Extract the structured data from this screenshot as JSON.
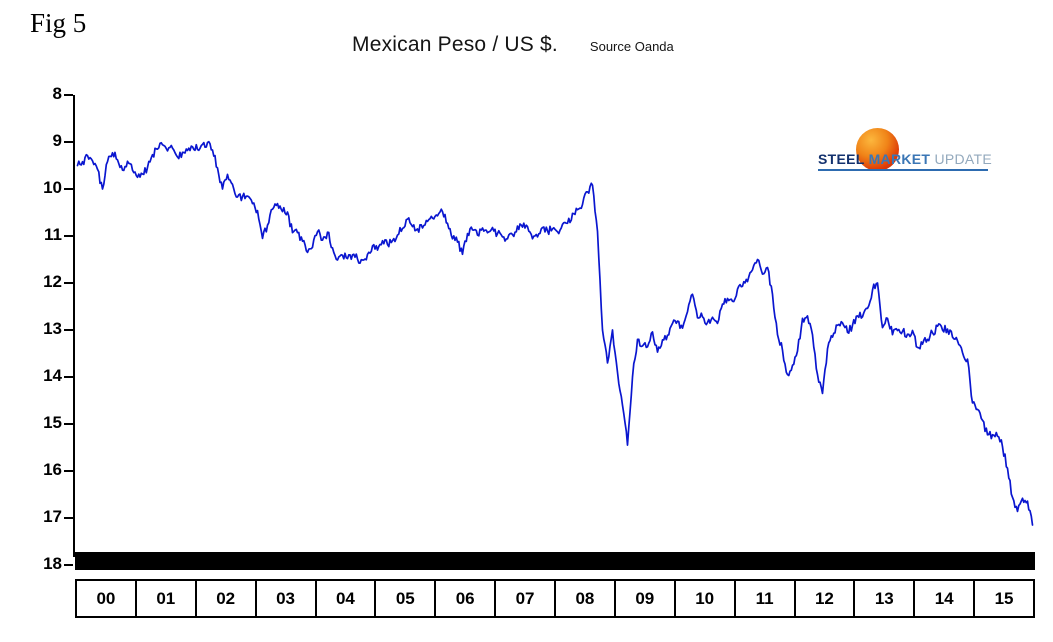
{
  "figure": {
    "label": "Fig 5",
    "title": "Mexican Peso / US $.",
    "source": "Source Oanda"
  },
  "logo": {
    "steel": "STEEL",
    "market": "MARKET",
    "update": "UPDATE",
    "accent_color": "#dd3a08",
    "blue_color": "#2d6bb0"
  },
  "chart_data": {
    "type": "line",
    "title": "Mexican Peso / US $",
    "series_name": "USD/MXN exchange rate (pesos per US dollar)",
    "source": "Oanda",
    "x_start_year": 2000,
    "points_per_year": 12,
    "x_tick_labels": [
      "00",
      "01",
      "02",
      "03",
      "04",
      "05",
      "06",
      "07",
      "08",
      "09",
      "10",
      "11",
      "12",
      "13",
      "14",
      "15"
    ],
    "y_ticks": [
      8,
      9,
      10,
      11,
      12,
      13,
      14,
      15,
      16,
      17,
      18
    ],
    "y_min": 8,
    "y_max": 18,
    "y_axis_inverted": true,
    "grid": false,
    "legend": false,
    "line_color": "#0a16cf",
    "values": [
      9.5,
      9.42,
      9.29,
      9.4,
      9.58,
      10.0,
      9.42,
      9.23,
      9.38,
      9.6,
      9.41,
      9.6,
      9.75,
      9.68,
      9.54,
      9.27,
      9.15,
      9.06,
      9.19,
      9.13,
      9.32,
      9.22,
      9.18,
      9.1,
      9.16,
      9.05,
      9.01,
      9.17,
      9.55,
      10.0,
      9.69,
      9.9,
      10.17,
      10.16,
      10.15,
      10.31,
      10.46,
      11.05,
      10.77,
      10.43,
      10.31,
      10.48,
      10.49,
      10.93,
      10.93,
      11.11,
      11.35,
      11.24,
      10.91,
      11.09,
      10.92,
      11.25,
      11.51,
      11.41,
      11.48,
      11.4,
      11.49,
      11.51,
      11.39,
      11.21,
      11.3,
      11.1,
      11.18,
      11.1,
      10.98,
      10.84,
      10.64,
      10.8,
      10.85,
      10.83,
      10.69,
      10.62,
      10.57,
      10.48,
      10.73,
      11.06,
      11.13,
      11.39,
      10.95,
      10.87,
      10.98,
      10.83,
      10.93,
      10.82,
      10.95,
      11.02,
      11.06,
      10.97,
      10.79,
      10.81,
      10.8,
      11.06,
      11.02,
      10.82,
      10.89,
      10.85,
      10.91,
      10.75,
      10.73,
      10.52,
      10.44,
      10.33,
      10.06,
      9.92,
      10.9,
      13.0,
      13.7,
      13.0,
      13.9,
      14.6,
      15.45,
      14.0,
      13.2,
      13.34,
      13.36,
      13.04,
      13.47,
      13.21,
      13.11,
      12.86,
      12.81,
      12.96,
      12.61,
      12.24,
      12.74,
      12.72,
      12.84,
      12.73,
      12.86,
      12.45,
      12.33,
      12.39,
      12.13,
      12.07,
      11.97,
      11.72,
      11.5,
      11.81,
      11.67,
      12.24,
      13.1,
      13.43,
      13.95,
      13.75,
      13.45,
      12.75,
      12.7,
      13.1,
      13.95,
      14.35,
      13.4,
      13.15,
      12.9,
      12.85,
      13.05,
      12.9,
      12.7,
      12.72,
      12.54,
      12.15,
      12.0,
      12.95,
      12.75,
      13.1,
      13.01,
      13.03,
      13.09,
      13.01,
      13.37,
      13.3,
      13.2,
      13.06,
      12.92,
      13.0,
      12.98,
      13.15,
      13.23,
      13.48,
      13.62,
      14.55,
      14.69,
      14.92,
      15.23,
      15.23,
      15.26,
      15.48,
      15.94,
      16.56,
      16.86,
      16.58,
      16.64,
      17.15
    ]
  }
}
